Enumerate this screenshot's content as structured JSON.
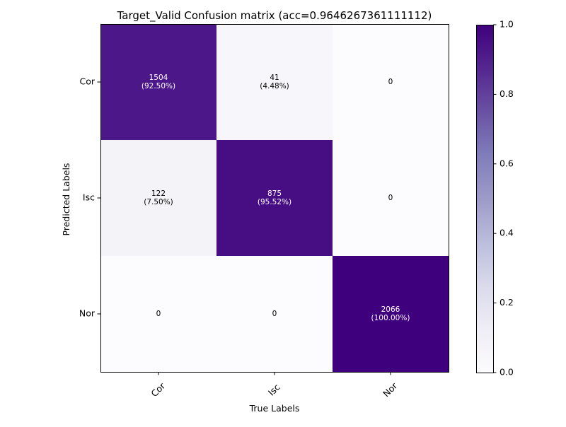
{
  "chart_data": {
    "type": "heatmap",
    "title": "Target_Valid Confusion matrix (acc=0.9646267361111112)",
    "xlabel": "True Labels",
    "ylabel": "Predicted Labels",
    "x_categories": [
      "Cor",
      "Isc",
      "Nor"
    ],
    "y_categories": [
      "Cor",
      "Isc",
      "Nor"
    ],
    "matrix": [
      [
        1504,
        41,
        0
      ],
      [
        122,
        875,
        0
      ],
      [
        0,
        0,
        2066
      ]
    ],
    "normalized": [
      [
        0.925,
        0.0448,
        0.0
      ],
      [
        0.075,
        0.9552,
        0.0
      ],
      [
        0.0,
        0.0,
        1.0
      ]
    ],
    "cell_labels": [
      [
        [
          "1504",
          "(92.50%)"
        ],
        [
          "41",
          "(4.48%)"
        ],
        [
          "0"
        ]
      ],
      [
        [
          "122",
          "(7.50%)"
        ],
        [
          "875",
          "(95.52%)"
        ],
        [
          "0"
        ]
      ],
      [
        [
          "0"
        ],
        [
          "0"
        ],
        [
          "2066",
          "(100.00%)"
        ]
      ]
    ],
    "colormap": "Purples",
    "colorbar": {
      "range": [
        0.0,
        1.0
      ],
      "ticks": [
        "0.0",
        "0.2",
        "0.4",
        "0.6",
        "0.8",
        "1.0"
      ]
    },
    "x_tick_rotation_deg": 45,
    "grid": false
  }
}
